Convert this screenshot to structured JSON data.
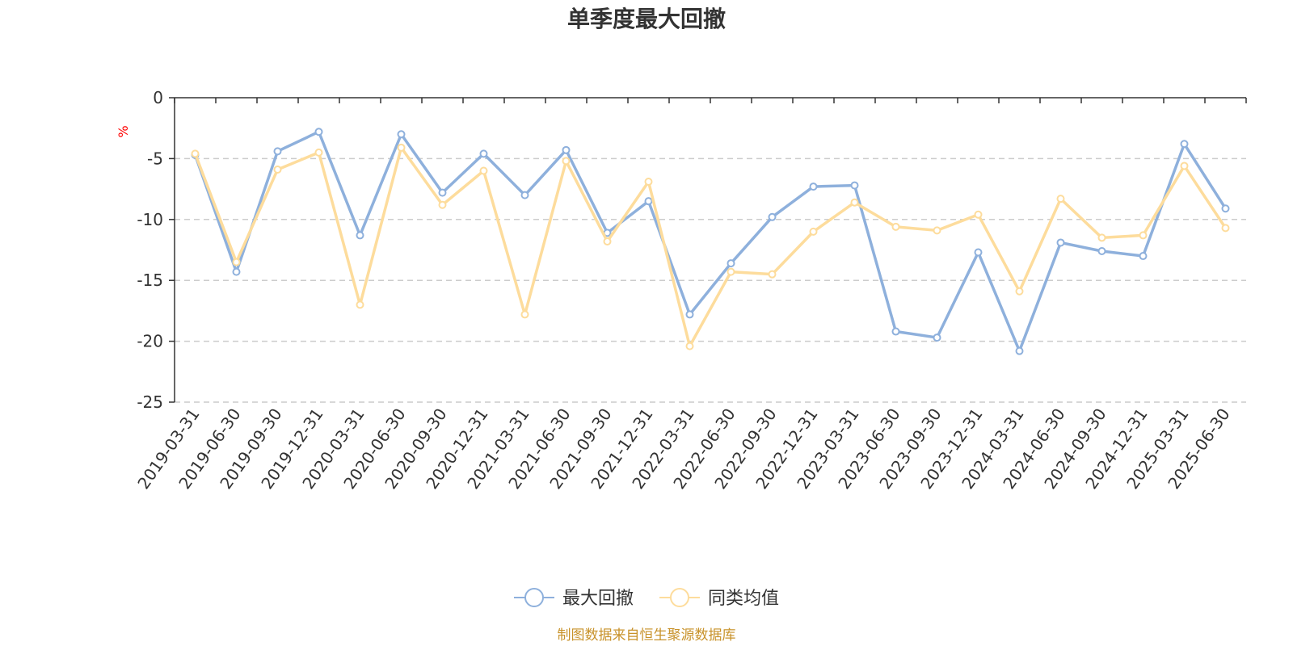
{
  "chart_data": {
    "type": "line",
    "title": "单季度最大回撤",
    "ylabel": "%",
    "ylim": [
      -25,
      0
    ],
    "yticks": [
      0,
      -5,
      -10,
      -15,
      -20,
      -25
    ],
    "grid": true,
    "legend_position": "bottom",
    "categories": [
      "2019-03-31",
      "2019-06-30",
      "2019-09-30",
      "2019-12-31",
      "2020-03-31",
      "2020-06-30",
      "2020-09-30",
      "2020-12-31",
      "2021-03-31",
      "2021-06-30",
      "2021-09-30",
      "2021-12-31",
      "2022-03-31",
      "2022-06-30",
      "2022-09-30",
      "2022-12-31",
      "2023-03-31",
      "2023-06-30",
      "2023-09-30",
      "2023-12-31",
      "2024-03-31",
      "2024-06-30",
      "2024-09-30",
      "2024-12-31",
      "2025-03-31",
      "2025-06-30"
    ],
    "series": [
      {
        "name": "最大回撤",
        "color": "#8eb0dc",
        "values": [
          -4.7,
          -14.3,
          -4.4,
          -2.8,
          -11.3,
          -3.0,
          -7.8,
          -4.6,
          -8.0,
          -4.3,
          -11.1,
          -8.5,
          -17.8,
          -13.6,
          -9.8,
          -7.3,
          -7.2,
          -19.2,
          -19.7,
          -12.7,
          -20.8,
          -11.9,
          -12.6,
          -13.0,
          -3.8,
          -9.1
        ]
      },
      {
        "name": "同类均值",
        "color": "#fddc9c",
        "values": [
          -4.6,
          -13.5,
          -5.9,
          -4.5,
          -17.0,
          -4.1,
          -8.8,
          -6.0,
          -17.8,
          -5.2,
          -11.8,
          -6.9,
          -20.4,
          -14.3,
          -14.5,
          -11.0,
          -8.6,
          -10.6,
          -10.9,
          -9.6,
          -15.9,
          -8.3,
          -11.5,
          -11.3,
          -5.6,
          -10.7
        ]
      }
    ]
  },
  "source_note": "制图数据来自恒生聚源数据库",
  "colors": {
    "axis": "#333333",
    "grid": "#cccccc",
    "unit": "#ff0000",
    "source": "#c8922a"
  }
}
